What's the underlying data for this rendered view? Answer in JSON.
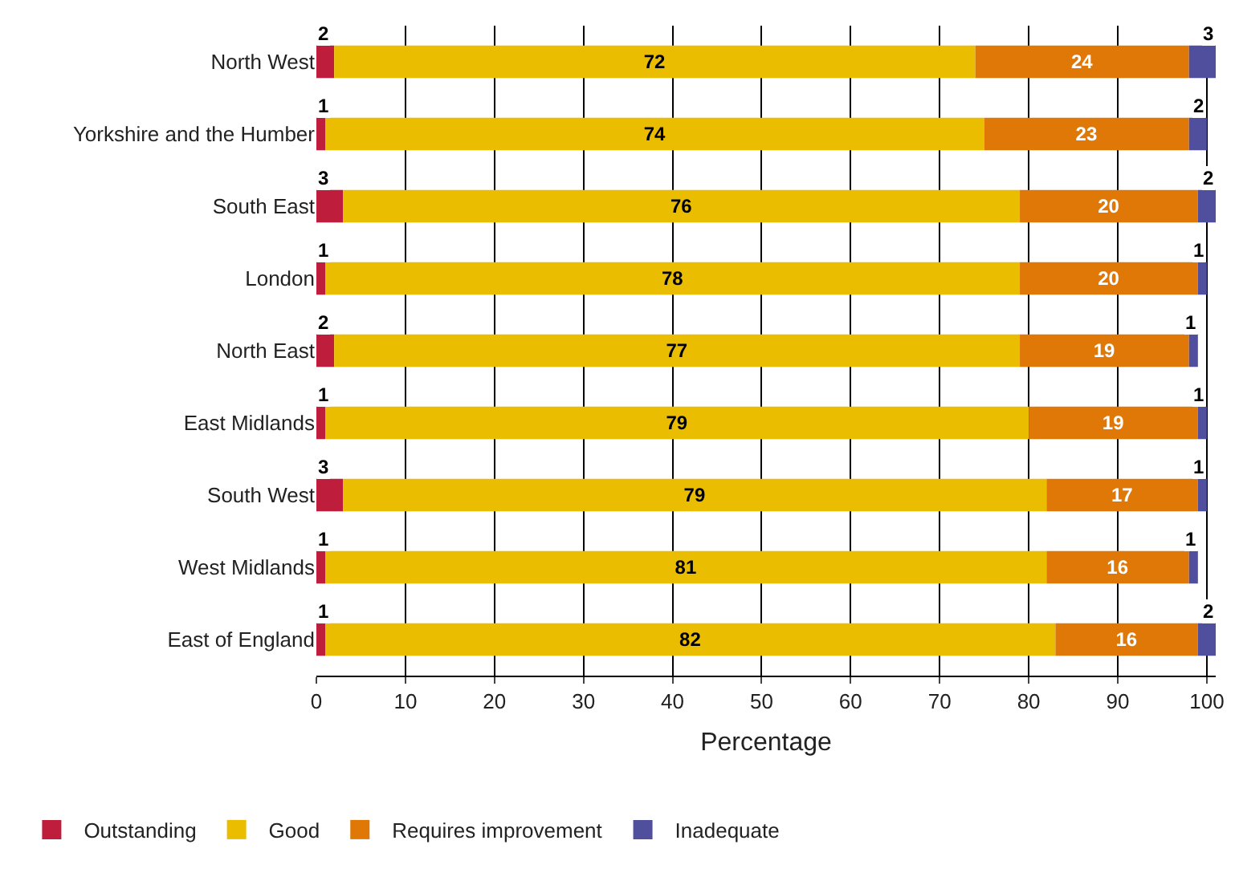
{
  "chart_data": {
    "type": "bar",
    "orientation": "horizontal",
    "stacked": true,
    "xlabel": "Percentage",
    "categories": [
      "North West",
      "Yorkshire and the Humber",
      "South East",
      "London",
      "North East",
      "East Midlands",
      "South West",
      "West Midlands",
      "East of England"
    ],
    "series": [
      {
        "name": "Outstanding",
        "color": "#be1e3c",
        "values": [
          2,
          1,
          3,
          1,
          2,
          1,
          3,
          1,
          1
        ]
      },
      {
        "name": "Good",
        "color": "#ebbd00",
        "values": [
          72,
          74,
          76,
          78,
          77,
          79,
          79,
          81,
          82
        ]
      },
      {
        "name": "Requires improvement",
        "color": "#e07808",
        "values": [
          24,
          23,
          20,
          20,
          19,
          19,
          17,
          16,
          16
        ]
      },
      {
        "name": "Inadequate",
        "color": "#4f4f9e",
        "values": [
          3,
          2,
          2,
          1,
          1,
          1,
          1,
          1,
          2
        ]
      }
    ],
    "xlim": [
      0,
      101
    ],
    "xticks": [
      0,
      10,
      20,
      30,
      40,
      50,
      60,
      70,
      80,
      90,
      100
    ],
    "grid": "x",
    "legend": "bottom left",
    "data_labels": true
  }
}
